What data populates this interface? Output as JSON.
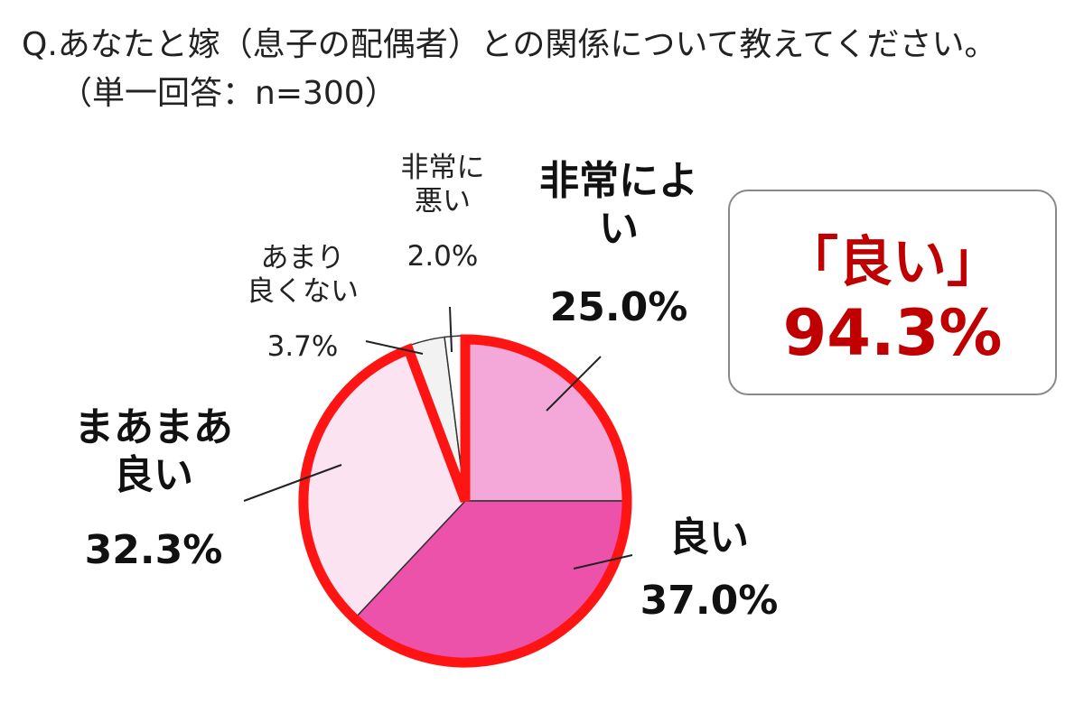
{
  "chart_data": {
    "type": "pie",
    "title": "Q.あなたと嫁（息子の配偶者）との関係について教えてください。",
    "subtitle": "（単一回答：n=300）",
    "categories": [
      "非常によ\nい",
      "良い",
      "まあまあ\n良い",
      "あまり\n良くない",
      "非常に\n悪い"
    ],
    "values": [
      25.0,
      37.0,
      32.3,
      3.7,
      2.0
    ],
    "value_labels": [
      "25.0%",
      "37.0%",
      "32.3%",
      "3.7%",
      "2.0%"
    ],
    "colors": [
      "#f4a8da",
      "#ec52aa",
      "#fbe3f1",
      "#f2f2f2",
      "#ffffff"
    ],
    "start_angle": 90,
    "direction": "clockwise",
    "highlight": {
      "label": "「良い」",
      "value": 94.3,
      "value_label": "94.3%",
      "color": "#ff1414"
    }
  }
}
